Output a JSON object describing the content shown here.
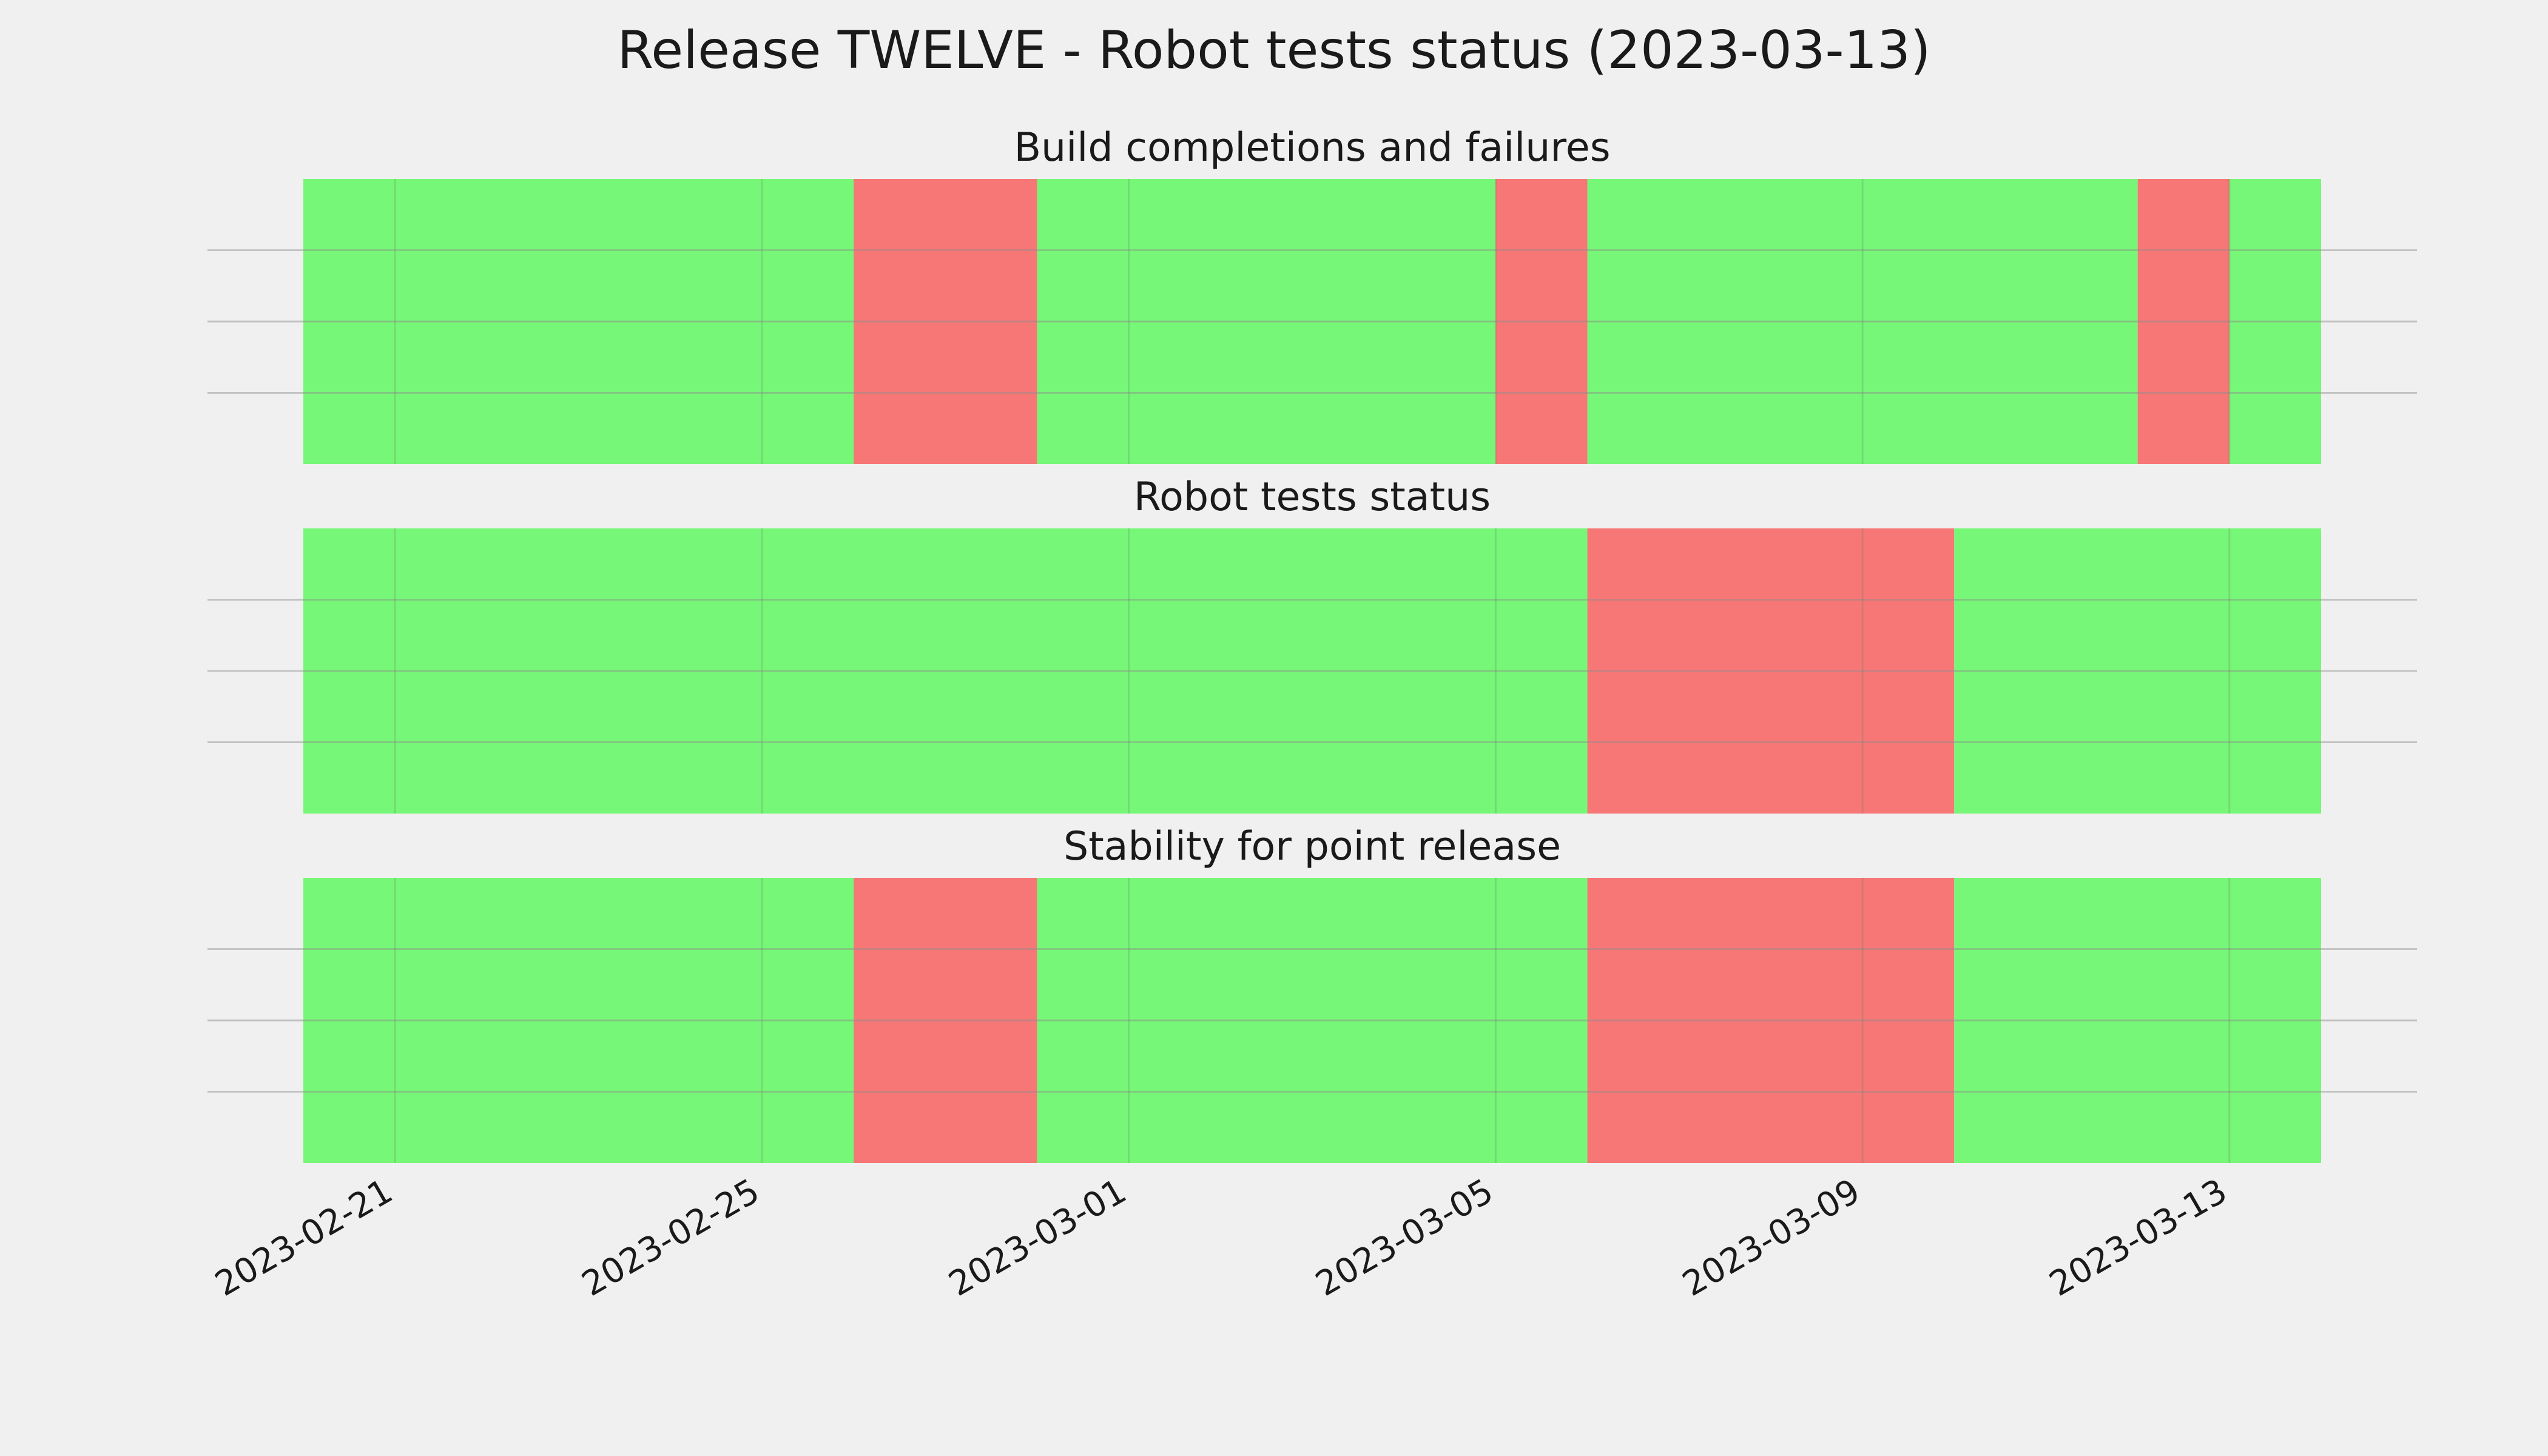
{
  "chart_data": {
    "type": "timeline",
    "title": "Release TWELVE - Robot tests status (2023-03-13)",
    "x_range": [
      "2023-02-20",
      "2023-03-14"
    ],
    "x_ticks": [
      "2023-02-21",
      "2023-02-25",
      "2023-03-01",
      "2023-03-05",
      "2023-03-09",
      "2023-03-13"
    ],
    "grid": true,
    "status_colors": {
      "pass": "#77f777",
      "fail": "#f77777"
    },
    "panels": [
      {
        "title": "Build completions and failures",
        "segments": [
          {
            "start": "2023-02-20",
            "end": "2023-02-26",
            "status": "pass"
          },
          {
            "start": "2023-02-26",
            "end": "2023-02-28",
            "status": "fail"
          },
          {
            "start": "2023-02-28",
            "end": "2023-03-05",
            "status": "pass"
          },
          {
            "start": "2023-03-05",
            "end": "2023-03-06",
            "status": "fail"
          },
          {
            "start": "2023-03-06",
            "end": "2023-03-12",
            "status": "pass"
          },
          {
            "start": "2023-03-12",
            "end": "2023-03-13",
            "status": "fail"
          },
          {
            "start": "2023-03-13",
            "end": "2023-03-14",
            "status": "pass"
          }
        ]
      },
      {
        "title": "Robot tests status",
        "segments": [
          {
            "start": "2023-02-20",
            "end": "2023-03-06",
            "status": "pass"
          },
          {
            "start": "2023-03-06",
            "end": "2023-03-10",
            "status": "fail"
          },
          {
            "start": "2023-03-10",
            "end": "2023-03-14",
            "status": "pass"
          }
        ]
      },
      {
        "title": "Stability for point release",
        "segments": [
          {
            "start": "2023-02-20",
            "end": "2023-02-26",
            "status": "pass"
          },
          {
            "start": "2023-02-26",
            "end": "2023-02-28",
            "status": "fail"
          },
          {
            "start": "2023-02-28",
            "end": "2023-03-06",
            "status": "pass"
          },
          {
            "start": "2023-03-06",
            "end": "2023-03-10",
            "status": "fail"
          },
          {
            "start": "2023-03-10",
            "end": "2023-03-14",
            "status": "pass"
          }
        ]
      }
    ]
  }
}
